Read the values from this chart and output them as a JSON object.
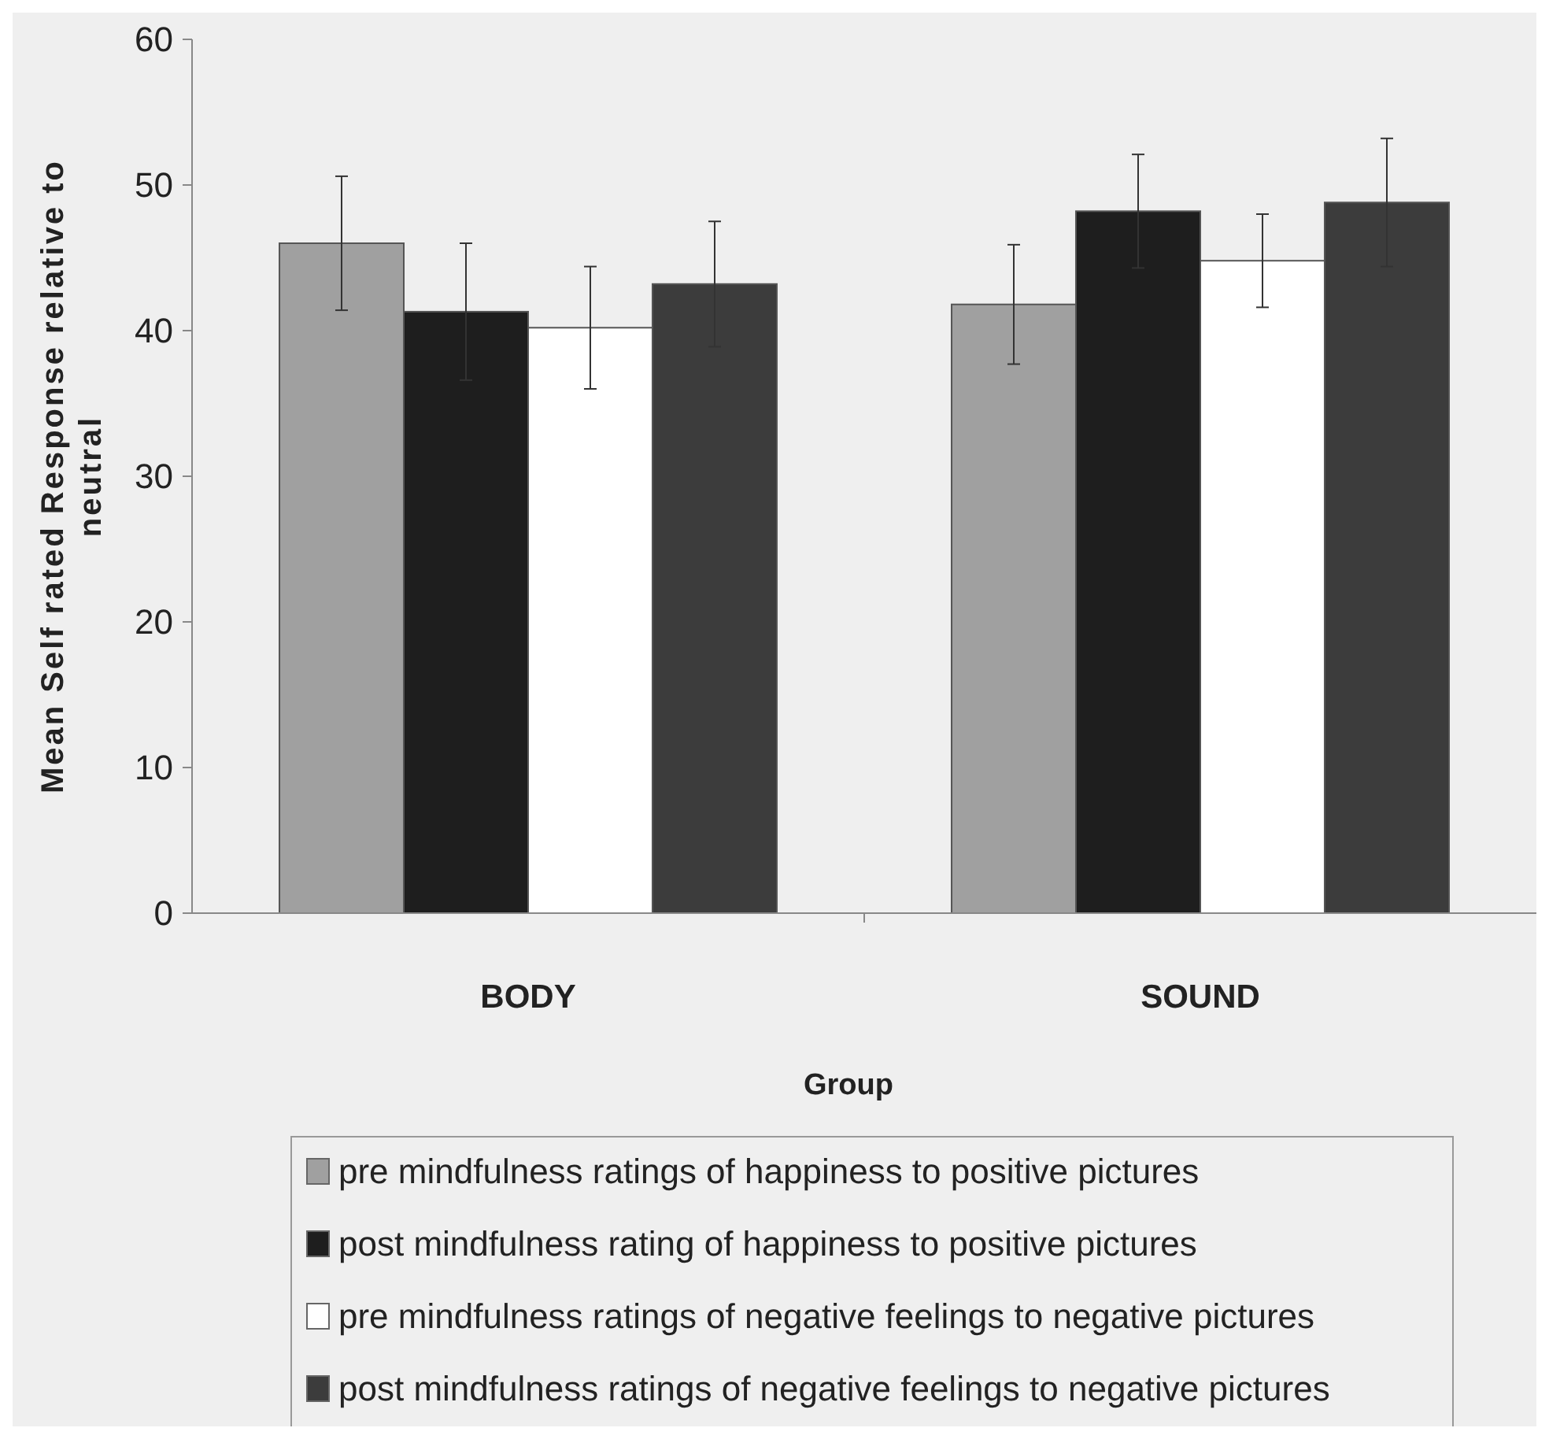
{
  "chart_data": {
    "type": "bar",
    "xlabel": "Group",
    "ylabel": "Mean Self rated Response relative to neutral",
    "categories": [
      "BODY",
      "SOUND"
    ],
    "series": [
      {
        "name": "pre mindfulness ratings of happiness to positive pictures",
        "color": "#a0a0a0",
        "values": [
          46,
          41.8
        ],
        "errors": [
          4.6,
          4.1
        ]
      },
      {
        "name": "post mindfulness rating of happiness to positive pictures",
        "color": "#1e1e1e",
        "values": [
          41.3,
          48.2
        ],
        "errors": [
          4.7,
          3.9
        ]
      },
      {
        "name": "pre mindfulness ratings of negative feelings to negative pictures",
        "color": "#ffffff",
        "values": [
          40.2,
          44.8
        ],
        "errors": [
          4.2,
          3.2
        ]
      },
      {
        "name": "post mindfulness ratings of negative feelings to negative pictures",
        "color": "#3c3c3c",
        "values": [
          43.2,
          48.8
        ],
        "errors": [
          4.3,
          4.4
        ]
      }
    ],
    "ylim": [
      0,
      60
    ],
    "yticks": [
      0,
      10,
      20,
      30,
      40,
      50,
      60
    ],
    "legend": "bottom"
  }
}
